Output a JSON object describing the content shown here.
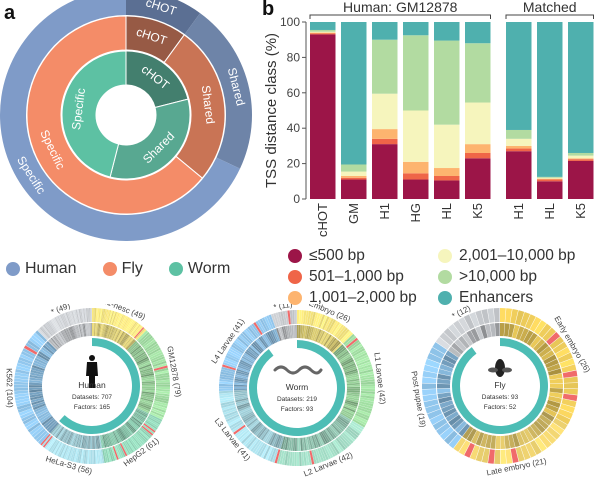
{
  "panels": {
    "a": "a",
    "b": "b"
  },
  "sunburst": {
    "rings": [
      {
        "organism": "Human",
        "segments": [
          {
            "label": "cHOT",
            "fraction": 0.1,
            "color": "#5b6f93"
          },
          {
            "label": "Shared",
            "fraction": 0.22,
            "color": "#6e84a8"
          },
          {
            "label": "Specific",
            "fraction": 0.68,
            "color": "#7f9bc8"
          }
        ]
      },
      {
        "organism": "Fly",
        "segments": [
          {
            "label": "cHOT",
            "fraction": 0.1,
            "color": "#975a45"
          },
          {
            "label": "Shared",
            "fraction": 0.26,
            "color": "#c97455"
          },
          {
            "label": "Specific",
            "fraction": 0.64,
            "color": "#f48c68"
          }
        ]
      },
      {
        "organism": "Worm",
        "segments": [
          {
            "label": "cHOT",
            "fraction": 0.21,
            "color": "#437f6e"
          },
          {
            "label": "Shared",
            "fraction": 0.33,
            "color": "#58a891"
          },
          {
            "label": "Specific",
            "fraction": 0.46,
            "color": "#5dc1a3"
          }
        ]
      }
    ]
  },
  "legend_a": [
    {
      "label": "Human",
      "color": "#7f9bc8"
    },
    {
      "label": "Fly",
      "color": "#f48c68"
    },
    {
      "label": "Worm",
      "color": "#5dc1a3"
    }
  ],
  "chart_data": {
    "type": "bar",
    "stacked": true,
    "title": "",
    "ylabel": "TSS distance class (%)",
    "ylim": [
      0,
      100
    ],
    "yticks": [
      0,
      20,
      40,
      60,
      80,
      100
    ],
    "groups": [
      {
        "label": "Human: GM12878",
        "categories": [
          "cHOT",
          "GM",
          "H1",
          "HG",
          "HL",
          "K5"
        ]
      },
      {
        "label": "Matched",
        "categories": [
          "H1",
          "HL",
          "K5"
        ]
      }
    ],
    "categories": [
      "cHOT",
      "GM",
      "H1",
      "HG",
      "HL",
      "K5",
      "H1",
      "HL",
      "K5"
    ],
    "series": [
      {
        "name": "≤500 bp",
        "color": "#9c1548",
        "values": [
          93,
          11,
          31,
          11,
          10.5,
          23,
          27,
          10,
          21.5
        ]
      },
      {
        "name": "501–1,000 bp",
        "color": "#ef6548",
        "values": [
          0.5,
          1,
          3,
          3.5,
          2.5,
          3,
          1.5,
          1,
          1
        ]
      },
      {
        "name": "1,001–2,000 bp",
        "color": "#fdb46f",
        "values": [
          0.5,
          1,
          5.5,
          6.5,
          4.5,
          5,
          1.5,
          0.5,
          0.5
        ]
      },
      {
        "name": "2,001–10,000 bp",
        "color": "#f6f5bd",
        "values": [
          0.5,
          2.5,
          20,
          29,
          24.5,
          23.5,
          4,
          0.5,
          1.5
        ]
      },
      {
        "name": ">10,000 bp",
        "color": "#b2dba1",
        "values": [
          1,
          4,
          30.5,
          42.5,
          47.5,
          33.5,
          5,
          0.5,
          1.5
        ]
      },
      {
        "name": "Enhancers",
        "color": "#4fb0ae",
        "values": [
          4.5,
          80.5,
          10,
          7.5,
          10.5,
          12,
          61,
          87.5,
          74
        ]
      }
    ]
  },
  "circos": [
    {
      "organism": "Human",
      "datasets_label": "Datasets: 707",
      "factors_label": "Factors: 165",
      "sectors": [
        {
          "label": "H1-hesc (49)",
          "count": 49,
          "color": "#f3e27a"
        },
        {
          "label": "GM12878 (79)",
          "count": 79,
          "color": "#9fdca0"
        },
        {
          "label": "HepG2 (61)",
          "count": 61,
          "color": "#8fd6b7"
        },
        {
          "label": "HeLa-S3 (56)",
          "count": 56,
          "color": "#a8dbe6"
        },
        {
          "label": "K562 (104)",
          "count": 104,
          "color": "#8fc4ea"
        },
        {
          "label": "* (49)",
          "count": 49,
          "color": "#c9ccd0"
        }
      ]
    },
    {
      "organism": "Worm",
      "datasets_label": "Datasets: 219",
      "factors_label": "Factors: 93",
      "sectors": [
        {
          "label": "Embryo (26)",
          "count": 26,
          "color": "#f3e27a"
        },
        {
          "label": "L1 Larvae (42)",
          "count": 42,
          "color": "#9fdca0"
        },
        {
          "label": "L2 Larvae (42)",
          "count": 42,
          "color": "#9fd9c2"
        },
        {
          "label": "L3 Larvae (41)",
          "count": 41,
          "color": "#a8dbe6"
        },
        {
          "label": "L4 Larvae (41)",
          "count": 41,
          "color": "#8fc4ea"
        },
        {
          "label": "* (11)",
          "count": 11,
          "color": "#c9ccd0"
        }
      ]
    },
    {
      "organism": "Fly",
      "datasets_label": "Datasets: 93",
      "factors_label": "Factors: 52",
      "sectors": [
        {
          "label": "Early embryo (26)",
          "count": 26,
          "color": "#f1cf5c"
        },
        {
          "label": "Late embryo (21)",
          "count": 21,
          "color": "#f3d773"
        },
        {
          "label": "Post pupae (19)",
          "count": 19,
          "color": "#8fc4ea"
        },
        {
          "label": "* (12)",
          "count": 12,
          "color": "#c9ccd0"
        }
      ]
    }
  ],
  "colors": {
    "teal": "#4dbdb5",
    "highlight_red": "#f06b6b"
  }
}
